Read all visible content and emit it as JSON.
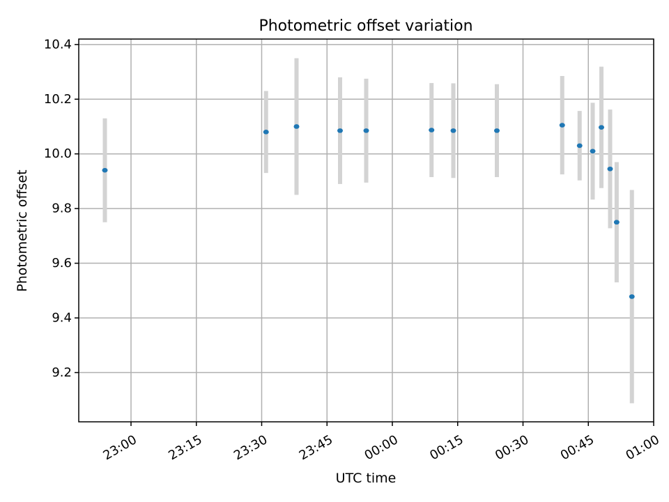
{
  "chart_data": {
    "type": "scatter",
    "title": "Photometric offset variation",
    "xlabel": "UTC time",
    "ylabel": "Photometric offset",
    "x_ticks": [
      "23:00",
      "23:15",
      "23:30",
      "23:45",
      "00:00",
      "00:15",
      "00:30",
      "00:45",
      "01:00"
    ],
    "y_ticks": [
      "9.2",
      "9.4",
      "9.6",
      "9.8",
      "10.0",
      "10.2",
      "10.4"
    ],
    "xlim": [
      "22:48",
      "01:00"
    ],
    "ylim": [
      9.02,
      10.42
    ],
    "grid": true,
    "colors": {
      "point": "#1f77b4",
      "errorbar": "#d3d3d3",
      "grid": "#b0b0b0"
    },
    "points": [
      {
        "x": "22:54",
        "y": 9.94,
        "err": 0.19
      },
      {
        "x": "23:31",
        "y": 10.08,
        "err": 0.15
      },
      {
        "x": "23:38",
        "y": 10.1,
        "err": 0.25
      },
      {
        "x": "23:48",
        "y": 10.085,
        "err": 0.195
      },
      {
        "x": "23:54",
        "y": 10.085,
        "err": 0.19
      },
      {
        "x": "00:09",
        "y": 10.087,
        "err": 0.172
      },
      {
        "x": "00:14",
        "y": 10.085,
        "err": 0.173
      },
      {
        "x": "00:24",
        "y": 10.085,
        "err": 0.17
      },
      {
        "x": "00:39",
        "y": 10.105,
        "err": 0.18
      },
      {
        "x": "00:43",
        "y": 10.03,
        "err": 0.127
      },
      {
        "x": "00:46",
        "y": 10.01,
        "err": 0.177
      },
      {
        "x": "00:48",
        "y": 10.097,
        "err": 0.222
      },
      {
        "x": "00:50",
        "y": 9.945,
        "err": 0.217
      },
      {
        "x": "00:51:30",
        "y": 9.75,
        "err": 0.22
      },
      {
        "x": "00:55",
        "y": 9.478,
        "err": 0.39
      }
    ]
  }
}
